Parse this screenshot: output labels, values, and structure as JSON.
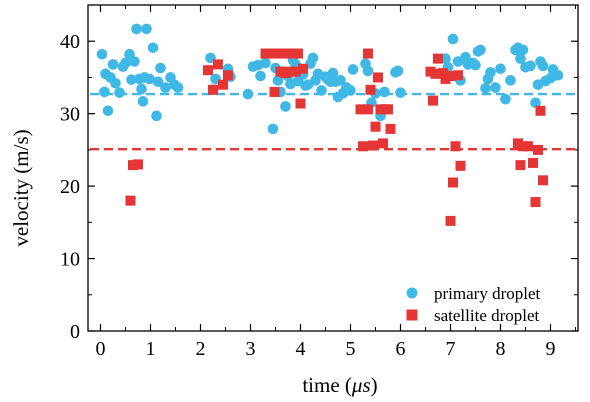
{
  "chart_data": {
    "type": "scatter",
    "xlabel_prefix": "time (",
    "xlabel_unit": "μs",
    "xlabel_suffix": ")",
    "ylabel": "velocity (m/s)",
    "xlim": [
      -0.25,
      9.55
    ],
    "ylim": [
      0,
      45
    ],
    "xticks": [
      0,
      1,
      2,
      3,
      4,
      5,
      6,
      7,
      8,
      9
    ],
    "yticks": [
      0,
      10,
      20,
      30,
      40
    ],
    "legend_position": "bottom-right",
    "series": [
      {
        "name": "primary droplet",
        "color": "#3fb8e6",
        "marker": "circle",
        "mean_line": 32.7,
        "points": [
          [
            0.03,
            38.2
          ],
          [
            0.08,
            33.0
          ],
          [
            0.1,
            35.5
          ],
          [
            0.15,
            30.4
          ],
          [
            0.2,
            35.0
          ],
          [
            0.25,
            36.8
          ],
          [
            0.3,
            34.2
          ],
          [
            0.38,
            32.9
          ],
          [
            0.45,
            36.5
          ],
          [
            0.5,
            37.0
          ],
          [
            0.58,
            38.2
          ],
          [
            0.62,
            34.7
          ],
          [
            0.68,
            37.2
          ],
          [
            0.72,
            41.7
          ],
          [
            0.78,
            34.8
          ],
          [
            0.82,
            33.4
          ],
          [
            0.85,
            31.7
          ],
          [
            0.88,
            35.0
          ],
          [
            0.92,
            41.7
          ],
          [
            0.98,
            34.8
          ],
          [
            1.05,
            39.1
          ],
          [
            1.12,
            29.7
          ],
          [
            1.15,
            34.4
          ],
          [
            1.2,
            36.3
          ],
          [
            1.3,
            33.6
          ],
          [
            1.4,
            35.0
          ],
          [
            1.48,
            34.0
          ],
          [
            1.55,
            33.6
          ],
          [
            2.2,
            37.7
          ],
          [
            2.25,
            33.3
          ],
          [
            2.3,
            34.8
          ],
          [
            2.55,
            36.2
          ],
          [
            2.6,
            35.1
          ],
          [
            2.95,
            32.7
          ],
          [
            3.05,
            36.5
          ],
          [
            3.15,
            36.7
          ],
          [
            3.2,
            35.2
          ],
          [
            3.3,
            37.0
          ],
          [
            3.45,
            27.9
          ],
          [
            3.5,
            36.3
          ],
          [
            3.55,
            34.6
          ],
          [
            3.6,
            33.0
          ],
          [
            3.65,
            35.8
          ],
          [
            3.7,
            31.0
          ],
          [
            3.75,
            35.2
          ],
          [
            3.8,
            34.1
          ],
          [
            3.85,
            37.4
          ],
          [
            3.9,
            36.8
          ],
          [
            3.95,
            34.5
          ],
          [
            4.0,
            36.2
          ],
          [
            4.05,
            35.4
          ],
          [
            4.1,
            33.9
          ],
          [
            4.15,
            34.0
          ],
          [
            4.2,
            36.9
          ],
          [
            4.25,
            37.7
          ],
          [
            4.3,
            34.6
          ],
          [
            4.35,
            35.5
          ],
          [
            4.42,
            33.2
          ],
          [
            4.5,
            35.1
          ],
          [
            4.55,
            34.7
          ],
          [
            4.6,
            34.4
          ],
          [
            4.65,
            35.6
          ],
          [
            4.7,
            34.4
          ],
          [
            4.75,
            32.3
          ],
          [
            4.8,
            34.6
          ],
          [
            4.85,
            32.8
          ],
          [
            4.92,
            33.6
          ],
          [
            5.0,
            33.2
          ],
          [
            5.05,
            36.1
          ],
          [
            5.3,
            36.9
          ],
          [
            5.35,
            35.9
          ],
          [
            5.42,
            31.5
          ],
          [
            5.5,
            32.8
          ],
          [
            5.6,
            29.7
          ],
          [
            5.68,
            33.0
          ],
          [
            5.9,
            35.7
          ],
          [
            5.95,
            35.9
          ],
          [
            6.0,
            32.9
          ],
          [
            6.9,
            37.6
          ],
          [
            6.95,
            36.4
          ],
          [
            7.0,
            35.2
          ],
          [
            7.05,
            40.3
          ],
          [
            7.15,
            37.2
          ],
          [
            7.2,
            34.6
          ],
          [
            7.3,
            37.8
          ],
          [
            7.35,
            36.8
          ],
          [
            7.45,
            37.0
          ],
          [
            7.5,
            36.7
          ],
          [
            7.55,
            38.6
          ],
          [
            7.6,
            38.8
          ],
          [
            7.7,
            33.5
          ],
          [
            7.75,
            34.8
          ],
          [
            7.8,
            35.7
          ],
          [
            7.9,
            33.6
          ],
          [
            8.0,
            36.2
          ],
          [
            8.1,
            32.0
          ],
          [
            8.2,
            34.6
          ],
          [
            8.3,
            38.8
          ],
          [
            8.35,
            39.1
          ],
          [
            8.4,
            37.6
          ],
          [
            8.45,
            38.8
          ],
          [
            8.5,
            36.4
          ],
          [
            8.6,
            36.6
          ],
          [
            8.7,
            31.5
          ],
          [
            8.75,
            34.0
          ],
          [
            8.8,
            37.2
          ],
          [
            8.85,
            36.6
          ],
          [
            8.9,
            34.5
          ],
          [
            9.0,
            34.9
          ],
          [
            9.05,
            36.1
          ],
          [
            9.1,
            35.3
          ],
          [
            9.15,
            35.3
          ]
        ]
      },
      {
        "name": "satellite droplet",
        "color": "#e53535",
        "marker": "square",
        "mean_line": 25.1,
        "points": [
          [
            0.6,
            18.0
          ],
          [
            0.65,
            22.9
          ],
          [
            0.75,
            23.0
          ],
          [
            2.15,
            36.0
          ],
          [
            2.25,
            33.3
          ],
          [
            2.35,
            36.8
          ],
          [
            2.45,
            34.0
          ],
          [
            2.55,
            35.3
          ],
          [
            3.3,
            38.3
          ],
          [
            3.35,
            38.3
          ],
          [
            3.42,
            38.3
          ],
          [
            3.48,
            33.0
          ],
          [
            3.55,
            38.3
          ],
          [
            3.6,
            35.8
          ],
          [
            3.65,
            38.3
          ],
          [
            3.7,
            35.6
          ],
          [
            3.75,
            38.3
          ],
          [
            3.8,
            35.8
          ],
          [
            3.85,
            38.3
          ],
          [
            3.9,
            35.8
          ],
          [
            3.95,
            38.3
          ],
          [
            4.0,
            31.4
          ],
          [
            4.05,
            36.2
          ],
          [
            5.2,
            30.6
          ],
          [
            5.25,
            25.5
          ],
          [
            5.35,
            30.6
          ],
          [
            5.35,
            38.3
          ],
          [
            5.4,
            33.3
          ],
          [
            5.45,
            25.6
          ],
          [
            5.5,
            28.2
          ],
          [
            5.55,
            35.0
          ],
          [
            5.6,
            30.6
          ],
          [
            5.65,
            25.9
          ],
          [
            5.7,
            30.6
          ],
          [
            5.75,
            30.6
          ],
          [
            5.8,
            27.9
          ],
          [
            6.6,
            35.8
          ],
          [
            6.65,
            31.8
          ],
          [
            6.7,
            35.5
          ],
          [
            6.75,
            37.6
          ],
          [
            6.85,
            35.6
          ],
          [
            6.9,
            34.8
          ],
          [
            6.95,
            35.2
          ],
          [
            7.0,
            35.2
          ],
          [
            7.0,
            15.2
          ],
          [
            7.05,
            20.5
          ],
          [
            7.1,
            25.5
          ],
          [
            7.15,
            35.3
          ],
          [
            7.2,
            22.8
          ],
          [
            8.35,
            25.9
          ],
          [
            8.4,
            22.9
          ],
          [
            8.45,
            25.5
          ],
          [
            8.55,
            25.5
          ],
          [
            8.65,
            23.2
          ],
          [
            8.7,
            17.8
          ],
          [
            8.75,
            25.0
          ],
          [
            8.8,
            30.4
          ],
          [
            8.85,
            20.8
          ]
        ]
      }
    ]
  }
}
